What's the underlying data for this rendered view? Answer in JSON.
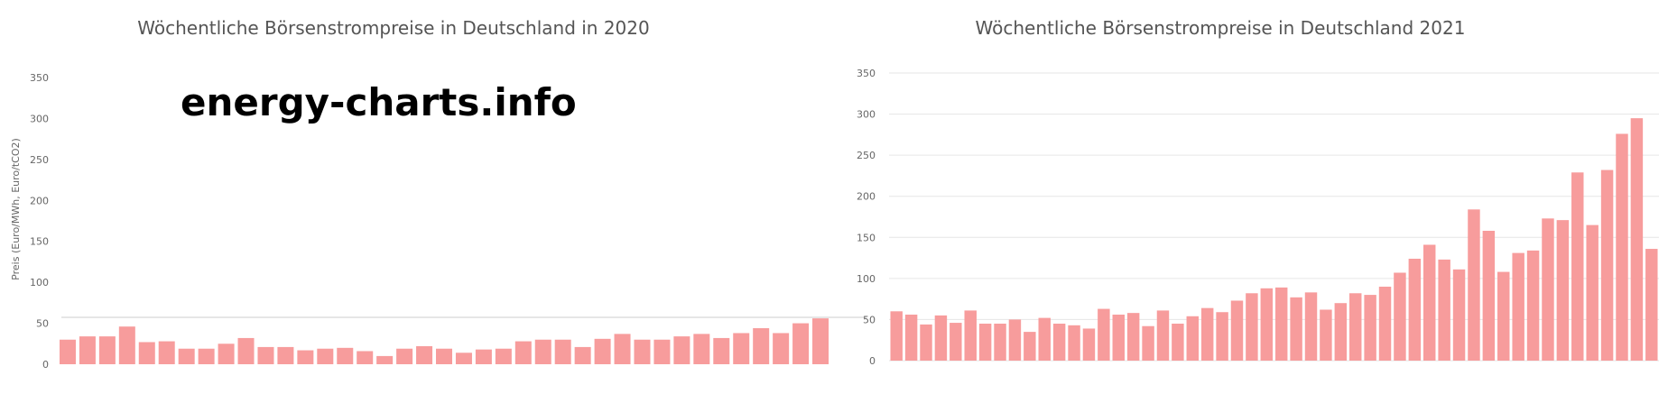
{
  "watermark": "energy-charts.info",
  "colors": {
    "bar": "#f79c9c",
    "grid": "#e6e6e6",
    "text": "#555555"
  },
  "chart_data": [
    {
      "type": "bar",
      "title": "Wöchentliche Börsenstrompreise in Deutschland in 2020",
      "ylabel": "Preis (Euro/MWh, Euro/tCO2)",
      "ylim": [
        0,
        350
      ],
      "yticks": [
        0,
        50,
        100,
        150,
        200,
        250,
        300,
        350
      ],
      "grid": false,
      "values": [
        30,
        34,
        34,
        46,
        27,
        28,
        19,
        19,
        25,
        32,
        21,
        21,
        17,
        19,
        20,
        16,
        10,
        19,
        22,
        19,
        14,
        18,
        19,
        28,
        30,
        30,
        21,
        31,
        37,
        30,
        30,
        34,
        37,
        32,
        38,
        44,
        38,
        50,
        56
      ]
    },
    {
      "type": "bar",
      "title": "Wöchentliche Börsenstrompreise in Deutschland 2021",
      "ylabel": "",
      "ylim": [
        0,
        350
      ],
      "yticks": [
        0,
        50,
        100,
        150,
        200,
        250,
        300,
        350
      ],
      "grid": true,
      "values": [
        60,
        56,
        44,
        55,
        46,
        61,
        45,
        45,
        50,
        35,
        52,
        45,
        43,
        39,
        63,
        56,
        58,
        42,
        61,
        45,
        54,
        64,
        59,
        73,
        82,
        88,
        89,
        77,
        83,
        62,
        70,
        82,
        80,
        90,
        107,
        124,
        141,
        123,
        111,
        184,
        158,
        108,
        131,
        134,
        173,
        171,
        229,
        165,
        232,
        276,
        295,
        136
      ]
    }
  ]
}
